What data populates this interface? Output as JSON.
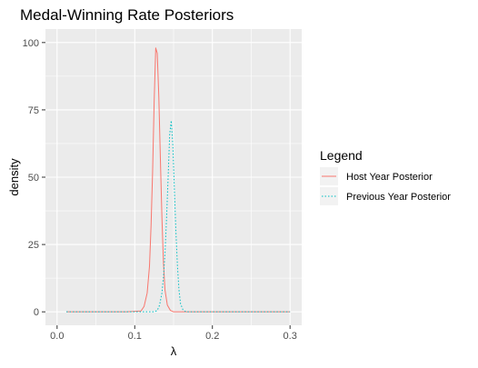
{
  "chart_data": {
    "type": "line",
    "title": "Medal-Winning Rate Posteriors",
    "xlabel": "λ",
    "ylabel": "density",
    "xlim": [
      0,
      0.3
    ],
    "ylim": [
      0,
      100
    ],
    "x_ticks": [
      0.0,
      0.1,
      0.2,
      0.3
    ],
    "x_tick_labels": [
      "0.0",
      "0.1",
      "0.2",
      "0.3"
    ],
    "y_ticks": [
      0,
      25,
      50,
      75,
      100
    ],
    "y_tick_labels": [
      "0",
      "25",
      "50",
      "75",
      "100"
    ],
    "grid": true,
    "legend": {
      "title": "Legend",
      "position": "right"
    },
    "series": [
      {
        "name": "Host Year Posterior",
        "color": "#F8766D",
        "line_style": "solid",
        "x": [
          0.012,
          0.05,
          0.09,
          0.108,
          0.112,
          0.116,
          0.119,
          0.121,
          0.123,
          0.125,
          0.127,
          0.129,
          0.131,
          0.133,
          0.135,
          0.137,
          0.139,
          0.142,
          0.146,
          0.15,
          0.2,
          0.25,
          0.3
        ],
        "values": [
          0,
          0,
          0,
          0.3,
          2,
          7,
          17,
          32,
          52,
          78,
          98,
          96,
          80,
          57,
          35,
          18,
          8,
          2.5,
          0.5,
          0,
          0,
          0,
          0
        ]
      },
      {
        "name": "Previous Year Posterior",
        "color": "#00BFC4",
        "line_style": "dotted",
        "x": [
          0.012,
          0.1,
          0.125,
          0.129,
          0.132,
          0.135,
          0.137,
          0.139,
          0.141,
          0.143,
          0.145,
          0.147,
          0.149,
          0.151,
          0.153,
          0.155,
          0.157,
          0.159,
          0.162,
          0.166,
          0.2,
          0.25,
          0.3
        ],
        "values": [
          0,
          0,
          0,
          0.5,
          2.5,
          7,
          13,
          22,
          35,
          50,
          66,
          71,
          62,
          46,
          30,
          17,
          8,
          3,
          0.8,
          0,
          0,
          0,
          0
        ]
      }
    ]
  }
}
